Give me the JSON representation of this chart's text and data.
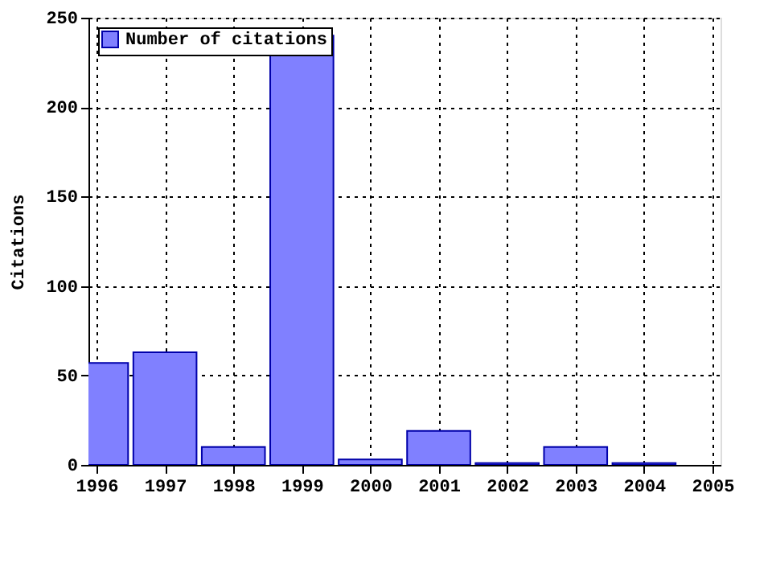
{
  "chart_data": {
    "type": "bar",
    "ylabel": "Citations",
    "x": [
      1996,
      1997,
      1998,
      1999,
      2000,
      2001,
      2002,
      2003,
      2004
    ],
    "series": [
      {
        "name": "Number of citations",
        "color": "#8080ff",
        "values": [
          57,
          63,
          10,
          240,
          3,
          19,
          1,
          10,
          1
        ]
      }
    ],
    "xlim": [
      1996,
      2005
    ],
    "xticks": [
      1996,
      1997,
      1998,
      1999,
      2000,
      2001,
      2002,
      2003,
      2004,
      2005
    ],
    "ylim": [
      0,
      250
    ],
    "yticks": [
      0,
      50,
      100,
      150,
      200,
      250
    ],
    "grid": true,
    "legend": "top left"
  }
}
